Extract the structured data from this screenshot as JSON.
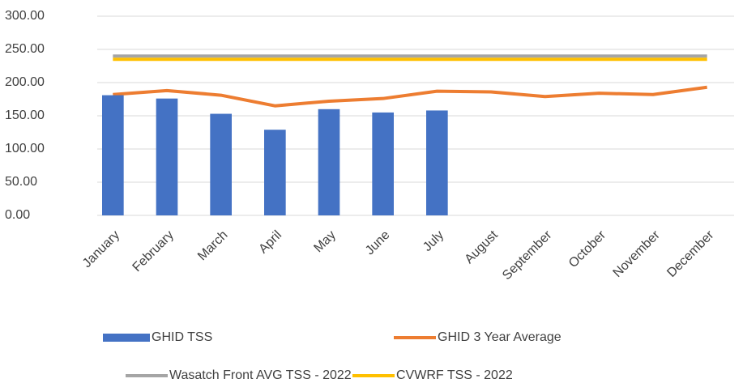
{
  "chart_data": {
    "type": "bar_line",
    "categories": [
      "January",
      "February",
      "March",
      "April",
      "May",
      "June",
      "July",
      "August",
      "September",
      "October",
      "November",
      "December"
    ],
    "series": [
      {
        "name": "GHID TSS",
        "type": "bar",
        "color": "#4472c4",
        "values": [
          181,
          176,
          153,
          129,
          160,
          155,
          158,
          null,
          null,
          null,
          null,
          null
        ]
      },
      {
        "name": "GHID 3 Year Average",
        "type": "line",
        "color": "#ed7d31",
        "values": [
          182,
          188,
          181,
          165,
          172,
          176,
          187,
          186,
          179,
          184,
          182,
          193
        ]
      },
      {
        "name": "Wasatch Front AVG TSS - 2022",
        "type": "line",
        "color": "#a5a5a5",
        "values": [
          240,
          240,
          240,
          240,
          240,
          240,
          240,
          240,
          240,
          240,
          240,
          240
        ]
      },
      {
        "name": "CVWRF TSS - 2022",
        "type": "line",
        "color": "#ffc000",
        "values": [
          235,
          235,
          235,
          235,
          235,
          235,
          235,
          235,
          235,
          235,
          235,
          235
        ]
      }
    ],
    "ylim": [
      0,
      300
    ],
    "yticks": [
      {
        "value": 0,
        "label": "0.00"
      },
      {
        "value": 50,
        "label": "50.00"
      },
      {
        "value": 100,
        "label": "100.00"
      },
      {
        "value": 150,
        "label": "150.00"
      },
      {
        "value": 200,
        "label": "200.00"
      },
      {
        "value": 250,
        "label": "250.00"
      },
      {
        "value": 300,
        "label": "300.00"
      }
    ],
    "grid": true,
    "legend": "bottom"
  }
}
